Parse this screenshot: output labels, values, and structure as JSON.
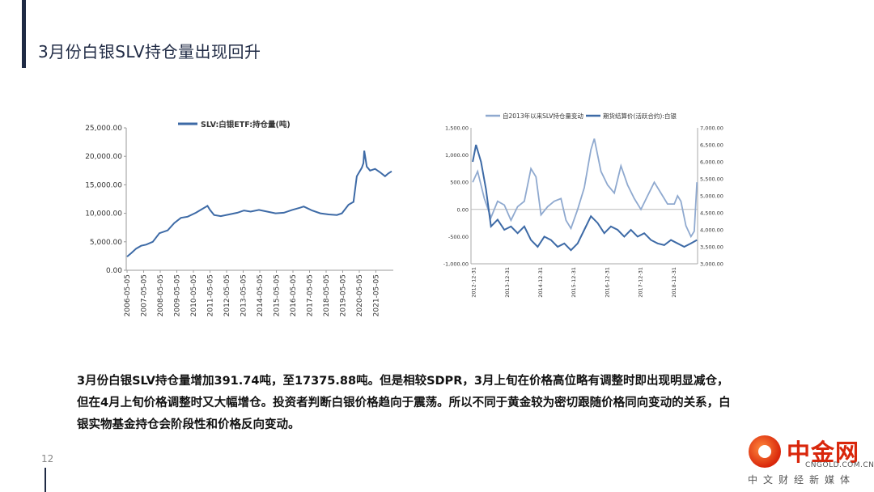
{
  "slide": {
    "title": "3月份白银SLV持仓量出现回升",
    "page_number": "12",
    "body_lines": [
      "3月份白银SLV持仓量增加391.74吨，至17375.88吨。但是相较SDPR，3月上旬在价格高位略有调整时即出现明显减仓，",
      "但在4月上旬价格调整时又大幅增仓。投资者判断白银价格趋向于震荡。所以不同于黄金较为密切跟随价格同向变动的关系，白",
      "银实物基金持仓会阶段性和价格反向变动。"
    ]
  },
  "logo": {
    "name": "中金网",
    "site": "CNGOLD.COM.CN",
    "tagline": "中文财经新媒体"
  },
  "colors": {
    "title": "#1f2a44",
    "series_dark": "#3d6aa6",
    "series_light": "#8fa9cf",
    "logo_red": "#d9260b"
  },
  "chart_data": [
    {
      "type": "line",
      "legend": [
        "SLV:白银ETF:持仓量(吨)"
      ],
      "legend_position": "top",
      "yticks": [
        "25,000.00",
        "20,000.00",
        "15,000.00",
        "10,000.00",
        "5,000.00",
        "0.00"
      ],
      "ylim": [
        0,
        25000
      ],
      "xticks": [
        "2006-05-05",
        "2007-05-05",
        "2008-05-05",
        "2009-05-05",
        "2010-05-05",
        "2011-05-05",
        "2012-05-05",
        "2013-05-05",
        "2014-05-05",
        "2015-05-05",
        "2016-05-05",
        "2017-05-05",
        "2018-05-05",
        "2019-05-05",
        "2020-05-05",
        "2021-05-05"
      ],
      "xlim": [
        2006.3,
        2022.4
      ],
      "grid": false,
      "series": [
        {
          "name": "SLV:白银ETF:持仓量(吨)",
          "x": [
            2006.35,
            2006.6,
            2006.9,
            2007.2,
            2007.5,
            2007.9,
            2008.3,
            2008.8,
            2009.2,
            2009.6,
            2010.0,
            2010.5,
            2010.9,
            2011.2,
            2011.35,
            2011.6,
            2012.0,
            2012.5,
            2013.0,
            2013.4,
            2013.8,
            2014.3,
            2014.8,
            2015.3,
            2015.8,
            2016.3,
            2016.8,
            2017.0,
            2017.5,
            2018.0,
            2018.5,
            2019.0,
            2019.3,
            2019.7,
            2020.0,
            2020.2,
            2020.5,
            2020.6,
            2020.65,
            2020.8,
            2021.0,
            2021.3,
            2021.6,
            2021.9,
            2022.1,
            2022.3
          ],
          "values": [
            2400,
            3000,
            3800,
            4300,
            4500,
            5000,
            6500,
            7000,
            8300,
            9200,
            9400,
            10100,
            10800,
            11300,
            10600,
            9700,
            9500,
            9800,
            10100,
            10500,
            10300,
            10600,
            10300,
            10000,
            10100,
            10600,
            11000,
            11200,
            10500,
            10000,
            9800,
            9700,
            10000,
            11500,
            12000,
            16500,
            18000,
            18800,
            21000,
            18200,
            17500,
            17800,
            17200,
            16500,
            17000,
            17375
          ]
        }
      ]
    },
    {
      "type": "line",
      "legend": [
        "自2013年以来SLV持仓量变动",
        "期货结算价(活跃合约):白银"
      ],
      "legend_position": "top",
      "y_left_ticks": [
        "1,500.00",
        "1,000.00",
        "500.00",
        "0.00",
        "-500.00",
        "-1,000.00"
      ],
      "y_left_lim": [
        -1000,
        1500
      ],
      "y_right_ticks": [
        "7,000.00",
        "6,500.00",
        "6,000.00",
        "5,500.00",
        "5,000.00",
        "4,500.00",
        "4,000.00",
        "3,500.00",
        "3,000.00"
      ],
      "y_right_lim": [
        3000,
        7000
      ],
      "xticks": [
        "2012-12-31",
        "2013-12-31",
        "2014-12-31",
        "2015-12-31",
        "2016-12-31",
        "2017-12-31",
        "2018-12-31"
      ],
      "xlim": [
        2012.9,
        2019.7
      ],
      "series": [
        {
          "name": "自2013年以来SLV持仓量变动",
          "axis": "left",
          "x": [
            2012.95,
            2013.1,
            2013.3,
            2013.5,
            2013.7,
            2013.9,
            2014.1,
            2014.3,
            2014.5,
            2014.7,
            2014.85,
            2015.0,
            2015.2,
            2015.4,
            2015.6,
            2015.75,
            2015.9,
            2016.1,
            2016.3,
            2016.5,
            2016.6,
            2016.8,
            2017.0,
            2017.2,
            2017.4,
            2017.6,
            2017.8,
            2018.0,
            2018.2,
            2018.4,
            2018.6,
            2018.8,
            2019.0,
            2019.1,
            2019.2,
            2019.35,
            2019.5,
            2019.6,
            2019.68
          ],
          "values": [
            500,
            700,
            200,
            -150,
            150,
            80,
            -200,
            50,
            150,
            750,
            600,
            -100,
            50,
            150,
            200,
            -200,
            -350,
            0,
            400,
            1100,
            1300,
            700,
            450,
            300,
            800,
            450,
            200,
            0,
            250,
            500,
            300,
            100,
            100,
            250,
            150,
            -300,
            -500,
            -400,
            500
          ]
        },
        {
          "name": "期货结算价(活跃合约):白银",
          "axis": "right",
          "x": [
            2012.95,
            2013.05,
            2013.2,
            2013.35,
            2013.5,
            2013.7,
            2013.9,
            2014.1,
            2014.3,
            2014.5,
            2014.7,
            2014.9,
            2015.1,
            2015.3,
            2015.5,
            2015.7,
            2015.9,
            2016.1,
            2016.3,
            2016.5,
            2016.7,
            2016.9,
            2017.1,
            2017.3,
            2017.5,
            2017.7,
            2017.9,
            2018.1,
            2018.3,
            2018.5,
            2018.7,
            2018.9,
            2019.1,
            2019.3,
            2019.5,
            2019.68
          ],
          "values": [
            6000,
            6500,
            6000,
            5200,
            4100,
            4300,
            4000,
            4100,
            3900,
            4100,
            3700,
            3500,
            3800,
            3700,
            3500,
            3600,
            3400,
            3600,
            4000,
            4400,
            4200,
            3900,
            4100,
            4000,
            3800,
            4000,
            3800,
            3900,
            3700,
            3600,
            3550,
            3700,
            3600,
            3500,
            3600,
            3700
          ]
        }
      ]
    }
  ]
}
